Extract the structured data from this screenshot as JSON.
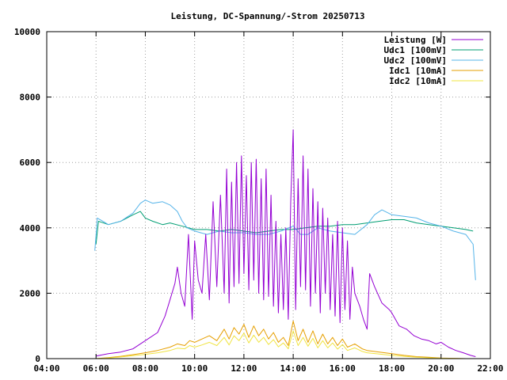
{
  "chart_data": {
    "type": "line",
    "title": "Leistung, DC-Spannung/-Strom 20250713",
    "xlabel": "",
    "ylabel": "",
    "xlim": [
      4,
      22
    ],
    "ylim": [
      0,
      10000
    ],
    "x_ticks": [
      {
        "value": 4,
        "label": "04:00"
      },
      {
        "value": 6,
        "label": "06:00"
      },
      {
        "value": 8,
        "label": "08:00"
      },
      {
        "value": 10,
        "label": "10:00"
      },
      {
        "value": 12,
        "label": "12:00"
      },
      {
        "value": 14,
        "label": "14:00"
      },
      {
        "value": 16,
        "label": "16:00"
      },
      {
        "value": 18,
        "label": "18:00"
      },
      {
        "value": 20,
        "label": "20:00"
      },
      {
        "value": 22,
        "label": "22:00"
      }
    ],
    "y_ticks": [
      {
        "value": 0,
        "label": "0"
      },
      {
        "value": 2000,
        "label": "2000"
      },
      {
        "value": 4000,
        "label": "4000"
      },
      {
        "value": 6000,
        "label": "6000"
      },
      {
        "value": 8000,
        "label": "8000"
      },
      {
        "value": 10000,
        "label": "10000"
      }
    ],
    "grid": true,
    "legend_position": "top-right",
    "series": [
      {
        "name": "Leistung [W]",
        "color": "#9400d3",
        "points": [
          [
            6.0,
            80
          ],
          [
            6.5,
            150
          ],
          [
            7.0,
            200
          ],
          [
            7.5,
            300
          ],
          [
            8.0,
            550
          ],
          [
            8.5,
            800
          ],
          [
            8.8,
            1300
          ],
          [
            9.0,
            1800
          ],
          [
            9.2,
            2300
          ],
          [
            9.3,
            2800
          ],
          [
            9.45,
            2000
          ],
          [
            9.6,
            1600
          ],
          [
            9.75,
            3800
          ],
          [
            9.9,
            1200
          ],
          [
            10.0,
            3600
          ],
          [
            10.15,
            2400
          ],
          [
            10.3,
            2000
          ],
          [
            10.45,
            3800
          ],
          [
            10.6,
            1800
          ],
          [
            10.75,
            4800
          ],
          [
            10.9,
            2200
          ],
          [
            11.05,
            5000
          ],
          [
            11.2,
            2000
          ],
          [
            11.3,
            5800
          ],
          [
            11.4,
            1700
          ],
          [
            11.5,
            5400
          ],
          [
            11.6,
            2200
          ],
          [
            11.7,
            6000
          ],
          [
            11.8,
            2300
          ],
          [
            11.9,
            6200
          ],
          [
            12.0,
            2600
          ],
          [
            12.1,
            5600
          ],
          [
            12.2,
            2100
          ],
          [
            12.3,
            6000
          ],
          [
            12.4,
            2400
          ],
          [
            12.5,
            6100
          ],
          [
            12.6,
            2000
          ],
          [
            12.7,
            5500
          ],
          [
            12.8,
            1800
          ],
          [
            12.9,
            5800
          ],
          [
            13.0,
            1900
          ],
          [
            13.1,
            5000
          ],
          [
            13.2,
            1600
          ],
          [
            13.3,
            4200
          ],
          [
            13.4,
            1400
          ],
          [
            13.5,
            3800
          ],
          [
            13.6,
            1500
          ],
          [
            13.7,
            4000
          ],
          [
            13.8,
            1200
          ],
          [
            13.9,
            4800
          ],
          [
            14.0,
            7000
          ],
          [
            14.1,
            1500
          ],
          [
            14.2,
            5500
          ],
          [
            14.3,
            2200
          ],
          [
            14.4,
            6200
          ],
          [
            14.5,
            2100
          ],
          [
            14.6,
            5800
          ],
          [
            14.7,
            1600
          ],
          [
            14.8,
            5200
          ],
          [
            14.9,
            2000
          ],
          [
            15.0,
            4800
          ],
          [
            15.1,
            1400
          ],
          [
            15.2,
            4600
          ],
          [
            15.3,
            2000
          ],
          [
            15.4,
            4300
          ],
          [
            15.5,
            1500
          ],
          [
            15.6,
            3800
          ],
          [
            15.7,
            1300
          ],
          [
            15.8,
            4200
          ],
          [
            15.9,
            1100
          ],
          [
            16.0,
            4000
          ],
          [
            16.1,
            1500
          ],
          [
            16.2,
            3600
          ],
          [
            16.3,
            1200
          ],
          [
            16.4,
            2800
          ],
          [
            16.5,
            2000
          ],
          [
            16.7,
            1600
          ],
          [
            16.85,
            1200
          ],
          [
            17.0,
            900
          ],
          [
            17.1,
            2600
          ],
          [
            17.3,
            2200
          ],
          [
            17.6,
            1700
          ],
          [
            17.9,
            1500
          ],
          [
            18.0,
            1400
          ],
          [
            18.3,
            1000
          ],
          [
            18.6,
            900
          ],
          [
            18.9,
            700
          ],
          [
            19.2,
            600
          ],
          [
            19.5,
            550
          ],
          [
            19.8,
            450
          ],
          [
            20.0,
            500
          ],
          [
            20.3,
            350
          ],
          [
            20.6,
            250
          ],
          [
            20.9,
            180
          ],
          [
            21.2,
            100
          ],
          [
            21.4,
            60
          ]
        ]
      },
      {
        "name": "Udc1 [100mV]",
        "color": "#009e73",
        "points": [
          [
            6.0,
            3500
          ],
          [
            6.1,
            4200
          ],
          [
            6.5,
            4100
          ],
          [
            7.0,
            4200
          ],
          [
            7.5,
            4400
          ],
          [
            7.8,
            4500
          ],
          [
            8.0,
            4300
          ],
          [
            8.3,
            4200
          ],
          [
            8.7,
            4100
          ],
          [
            9.0,
            4150
          ],
          [
            9.5,
            4050
          ],
          [
            10.0,
            3950
          ],
          [
            10.5,
            3950
          ],
          [
            11.0,
            3900
          ],
          [
            11.5,
            3950
          ],
          [
            12.0,
            3900
          ],
          [
            12.5,
            3850
          ],
          [
            13.0,
            3900
          ],
          [
            13.5,
            3950
          ],
          [
            14.0,
            3950
          ],
          [
            14.5,
            4000
          ],
          [
            15.0,
            4050
          ],
          [
            15.5,
            4050
          ],
          [
            16.0,
            4100
          ],
          [
            16.5,
            4100
          ],
          [
            17.0,
            4150
          ],
          [
            17.5,
            4200
          ],
          [
            18.0,
            4250
          ],
          [
            18.5,
            4250
          ],
          [
            19.0,
            4150
          ],
          [
            19.5,
            4100
          ],
          [
            20.0,
            4050
          ],
          [
            20.5,
            4000
          ],
          [
            21.0,
            3950
          ],
          [
            21.3,
            3900
          ]
        ]
      },
      {
        "name": "Udc2 [100mV]",
        "color": "#56b4e9",
        "points": [
          [
            5.95,
            3300
          ],
          [
            6.05,
            4300
          ],
          [
            6.5,
            4100
          ],
          [
            7.0,
            4200
          ],
          [
            7.5,
            4450
          ],
          [
            7.8,
            4750
          ],
          [
            8.0,
            4850
          ],
          [
            8.3,
            4750
          ],
          [
            8.7,
            4800
          ],
          [
            9.0,
            4700
          ],
          [
            9.3,
            4500
          ],
          [
            9.5,
            4200
          ],
          [
            9.7,
            4000
          ],
          [
            10.0,
            3900
          ],
          [
            10.5,
            3800
          ],
          [
            11.0,
            3900
          ],
          [
            11.5,
            3850
          ],
          [
            12.0,
            3850
          ],
          [
            12.5,
            3800
          ],
          [
            13.0,
            3800
          ],
          [
            13.5,
            3900
          ],
          [
            14.0,
            4050
          ],
          [
            14.3,
            3800
          ],
          [
            14.6,
            3800
          ],
          [
            15.0,
            4000
          ],
          [
            15.5,
            3900
          ],
          [
            16.0,
            3850
          ],
          [
            16.5,
            3800
          ],
          [
            17.0,
            4100
          ],
          [
            17.3,
            4400
          ],
          [
            17.6,
            4550
          ],
          [
            18.0,
            4400
          ],
          [
            18.5,
            4350
          ],
          [
            19.0,
            4300
          ],
          [
            19.5,
            4150
          ],
          [
            20.0,
            4050
          ],
          [
            20.5,
            3900
          ],
          [
            21.0,
            3800
          ],
          [
            21.3,
            3500
          ],
          [
            21.4,
            2400
          ]
        ]
      },
      {
        "name": "Idc1 [10mA]",
        "color": "#e69f00",
        "points": [
          [
            6.0,
            0
          ],
          [
            6.5,
            30
          ],
          [
            7.0,
            70
          ],
          [
            7.5,
            120
          ],
          [
            8.0,
            180
          ],
          [
            8.5,
            250
          ],
          [
            9.0,
            350
          ],
          [
            9.3,
            450
          ],
          [
            9.6,
            400
          ],
          [
            9.8,
            550
          ],
          [
            10.0,
            500
          ],
          [
            10.3,
            600
          ],
          [
            10.6,
            700
          ],
          [
            10.9,
            550
          ],
          [
            11.2,
            900
          ],
          [
            11.4,
            600
          ],
          [
            11.6,
            950
          ],
          [
            11.8,
            750
          ],
          [
            12.0,
            1050
          ],
          [
            12.2,
            650
          ],
          [
            12.4,
            1000
          ],
          [
            12.6,
            700
          ],
          [
            12.8,
            900
          ],
          [
            13.0,
            600
          ],
          [
            13.2,
            800
          ],
          [
            13.4,
            500
          ],
          [
            13.6,
            650
          ],
          [
            13.8,
            400
          ],
          [
            14.0,
            1150
          ],
          [
            14.2,
            550
          ],
          [
            14.4,
            900
          ],
          [
            14.6,
            500
          ],
          [
            14.8,
            850
          ],
          [
            15.0,
            450
          ],
          [
            15.2,
            750
          ],
          [
            15.4,
            450
          ],
          [
            15.6,
            650
          ],
          [
            15.8,
            400
          ],
          [
            16.0,
            600
          ],
          [
            16.2,
            350
          ],
          [
            16.5,
            450
          ],
          [
            16.8,
            300
          ],
          [
            17.0,
            250
          ],
          [
            17.5,
            200
          ],
          [
            18.0,
            150
          ],
          [
            18.5,
            100
          ],
          [
            19.0,
            60
          ],
          [
            19.5,
            40
          ],
          [
            20.0,
            20
          ],
          [
            20.5,
            10
          ],
          [
            21.0,
            0
          ]
        ]
      },
      {
        "name": "Idc2 [10mA]",
        "color": "#f0e442",
        "points": [
          [
            6.0,
            0
          ],
          [
            6.5,
            20
          ],
          [
            7.0,
            50
          ],
          [
            7.5,
            90
          ],
          [
            8.0,
            130
          ],
          [
            8.5,
            180
          ],
          [
            9.0,
            250
          ],
          [
            9.3,
            320
          ],
          [
            9.6,
            300
          ],
          [
            9.8,
            400
          ],
          [
            10.0,
            350
          ],
          [
            10.3,
            420
          ],
          [
            10.6,
            500
          ],
          [
            10.9,
            400
          ],
          [
            11.2,
            650
          ],
          [
            11.4,
            420
          ],
          [
            11.6,
            700
          ],
          [
            11.8,
            550
          ],
          [
            12.0,
            780
          ],
          [
            12.2,
            480
          ],
          [
            12.4,
            720
          ],
          [
            12.6,
            500
          ],
          [
            12.8,
            650
          ],
          [
            13.0,
            430
          ],
          [
            13.2,
            580
          ],
          [
            13.4,
            360
          ],
          [
            13.6,
            480
          ],
          [
            13.8,
            300
          ],
          [
            14.0,
            850
          ],
          [
            14.2,
            400
          ],
          [
            14.4,
            650
          ],
          [
            14.6,
            380
          ],
          [
            14.8,
            620
          ],
          [
            15.0,
            330
          ],
          [
            15.2,
            550
          ],
          [
            15.4,
            330
          ],
          [
            15.6,
            480
          ],
          [
            15.8,
            290
          ],
          [
            16.0,
            430
          ],
          [
            16.2,
            250
          ],
          [
            16.5,
            330
          ],
          [
            16.8,
            220
          ],
          [
            17.0,
            180
          ],
          [
            17.5,
            140
          ],
          [
            18.0,
            100
          ],
          [
            18.5,
            70
          ],
          [
            19.0,
            40
          ],
          [
            19.5,
            25
          ],
          [
            20.0,
            12
          ],
          [
            20.5,
            5
          ],
          [
            21.0,
            0
          ]
        ]
      }
    ]
  }
}
